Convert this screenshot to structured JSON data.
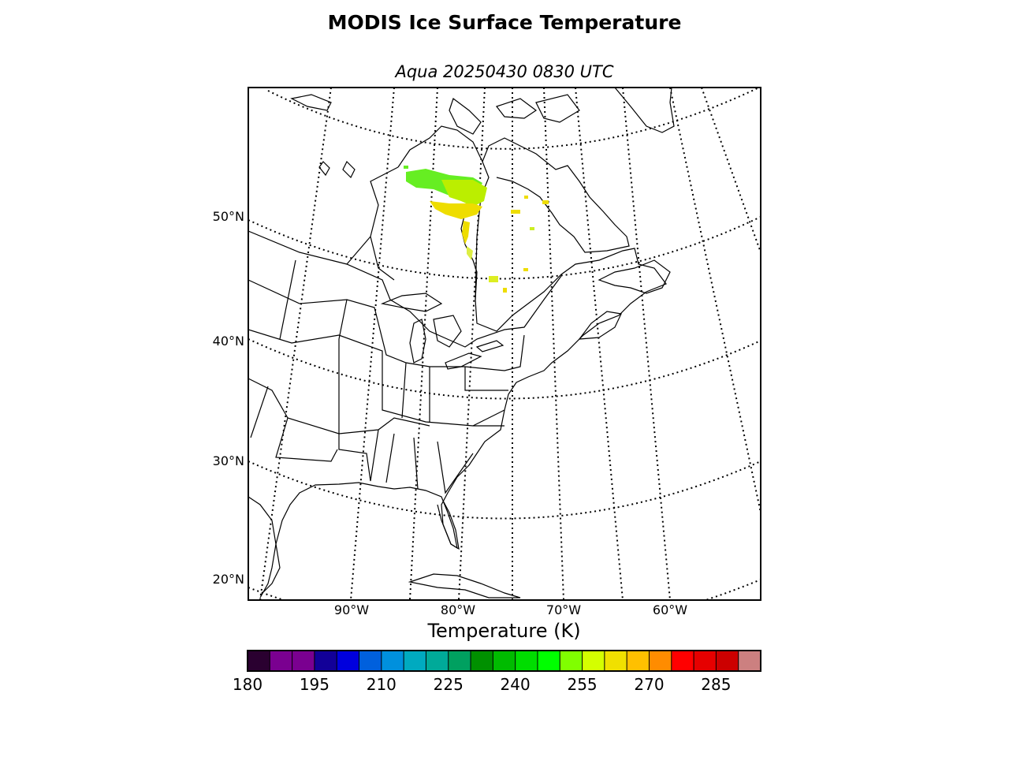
{
  "title": "MODIS Ice Surface Temperature",
  "subtitle": "Aqua 20250430 0830 UTC",
  "map": {
    "projection": "conic",
    "lat_labels": [
      "50°N",
      "40°N",
      "30°N",
      "20°N"
    ],
    "lon_labels": [
      "90°W",
      "80°W",
      "70°W",
      "60°W"
    ],
    "features": [
      "coastlines",
      "country borders",
      "state/province borders",
      "graticule"
    ],
    "ice_temperature_regions": [
      {
        "region": "Hudson Bay / James Bay area",
        "approx_K": [
          245,
          265
        ]
      },
      {
        "region": "Northern Quebec scattered",
        "approx_K": [
          255,
          265
        ]
      },
      {
        "region": "Southern Quebec scattered",
        "approx_K": [
          255,
          262
        ]
      }
    ]
  },
  "colorbar": {
    "label": "Temperature (K)",
    "min": 180,
    "max": 295,
    "tick_labels": [
      "180",
      "195",
      "210",
      "225",
      "240",
      "255",
      "270",
      "285"
    ],
    "colors": [
      "#2a0030",
      "#7a0090",
      "#7a0090",
      "#120098",
      "#0000dd",
      "#0060dd",
      "#0090dd",
      "#00aac0",
      "#00aa99",
      "#00a060",
      "#009000",
      "#00bb00",
      "#00dd00",
      "#00ff00",
      "#80ff00",
      "#d4ff00",
      "#f0e000",
      "#ffc000",
      "#ff8c00",
      "#ff0000",
      "#e60000",
      "#cc0000",
      "#cc8080"
    ]
  }
}
